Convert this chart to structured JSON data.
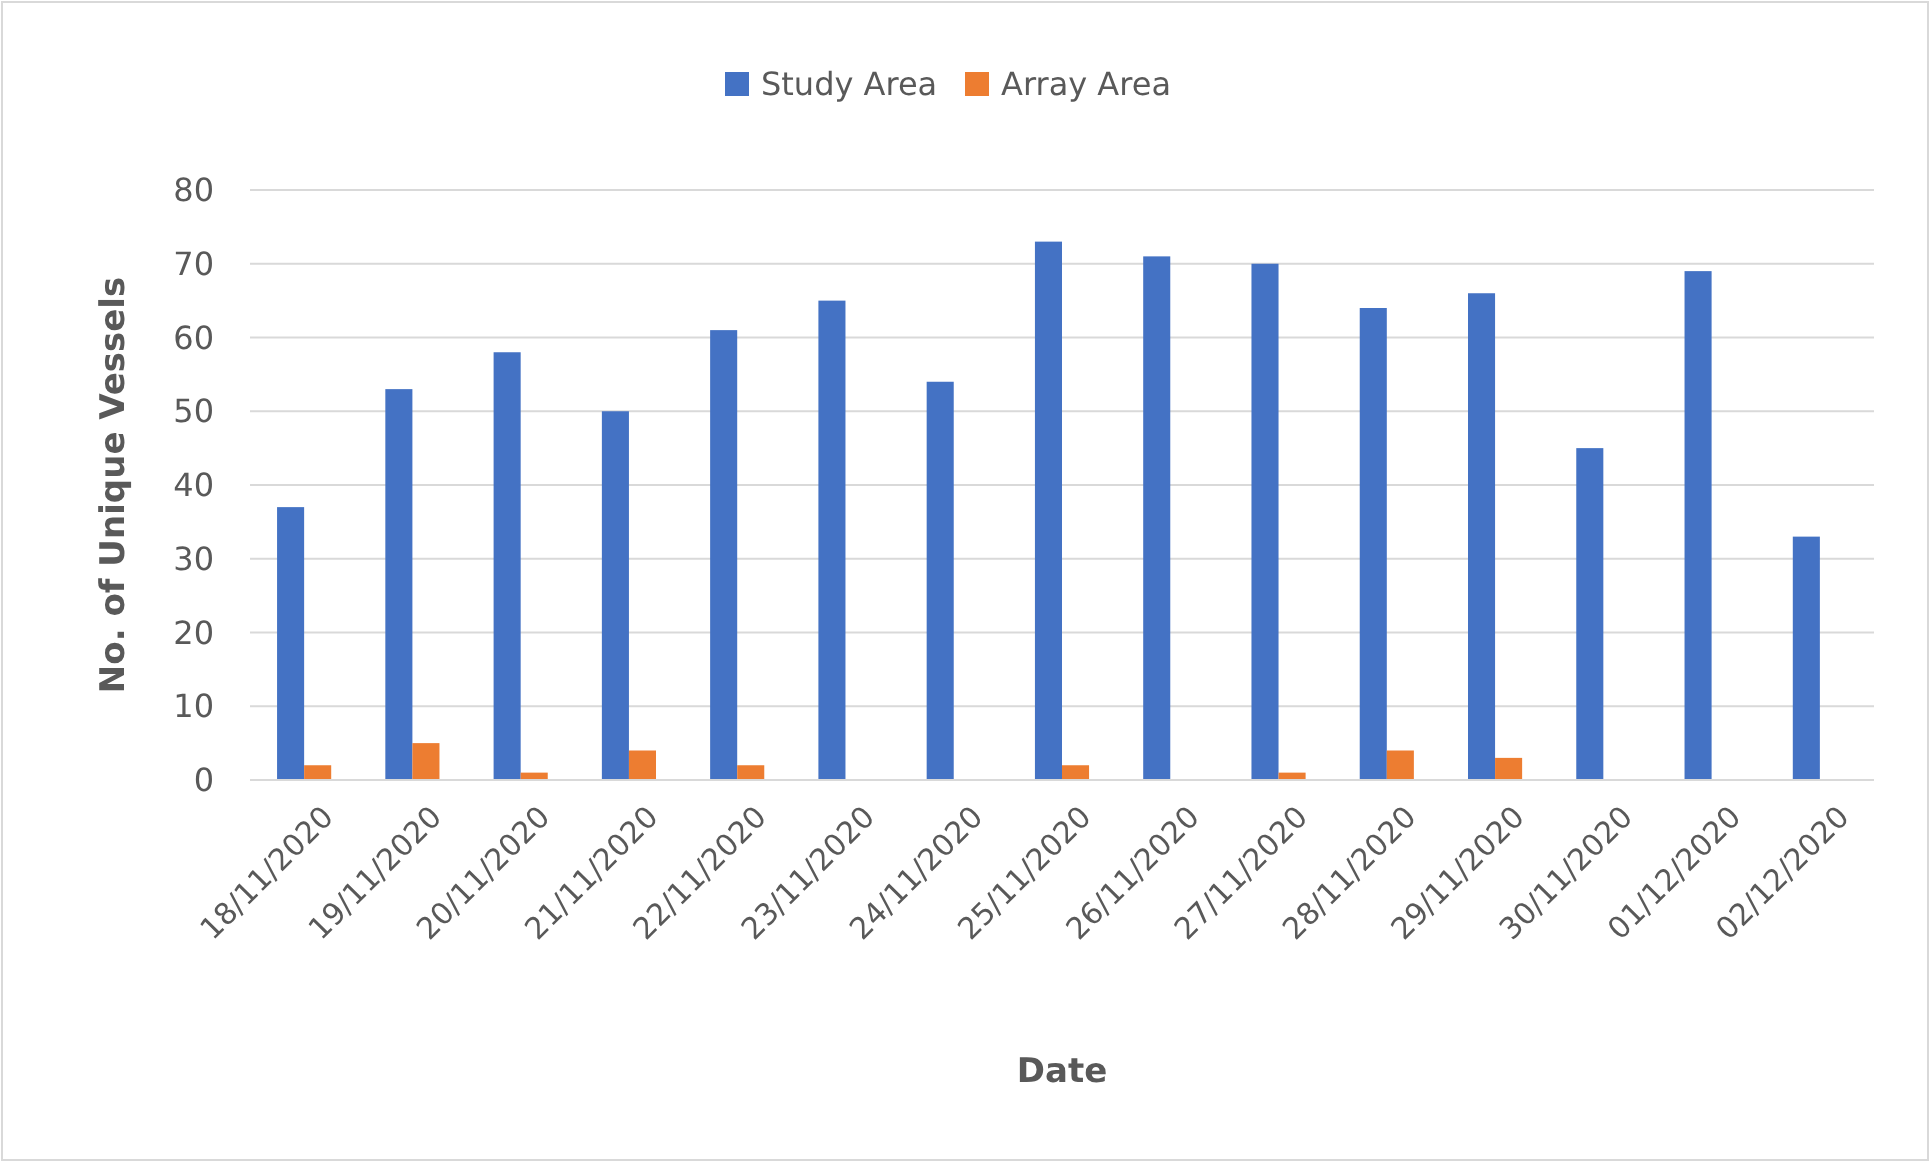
{
  "chart_data": {
    "type": "bar",
    "xlabel": "Date",
    "ylabel": "No. of Unique Vessels",
    "categories": [
      "18/11/2020",
      "19/11/2020",
      "20/11/2020",
      "21/11/2020",
      "22/11/2020",
      "23/11/2020",
      "24/11/2020",
      "25/11/2020",
      "26/11/2020",
      "27/11/2020",
      "28/11/2020",
      "29/11/2020",
      "30/11/2020",
      "01/12/2020",
      "02/12/2020"
    ],
    "series": [
      {
        "name": "Study Area",
        "color": "#4472c4",
        "values": [
          37,
          53,
          58,
          50,
          61,
          65,
          54,
          73,
          71,
          70,
          64,
          66,
          45,
          69,
          33
        ]
      },
      {
        "name": "Array Area",
        "color": "#ed7d31",
        "values": [
          2,
          5,
          1,
          4,
          2,
          0,
          0,
          2,
          0,
          1,
          4,
          3,
          0,
          0,
          0
        ]
      }
    ],
    "ylim": [
      0,
      80
    ],
    "yticks": [
      0,
      10,
      20,
      30,
      40,
      50,
      60,
      70,
      80
    ],
    "grid": "y",
    "legend": "top"
  }
}
